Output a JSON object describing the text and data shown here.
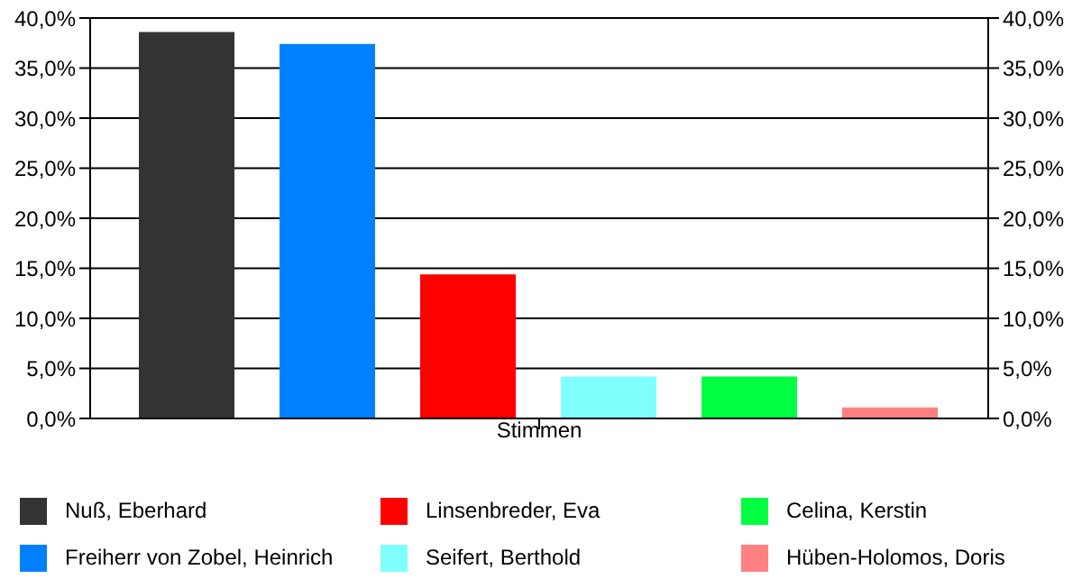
{
  "chart_data": {
    "type": "bar",
    "xlabel": "Stimmen",
    "categories": [
      null
    ],
    "series": [
      {
        "name": "Nuß, Eberhard",
        "color": "#333333",
        "values": [
          38.6
        ]
      },
      {
        "name": "Freiherr von Zobel, Heinrich",
        "color": "#0080ff",
        "values": [
          37.4
        ]
      },
      {
        "name": "Linsenbreder, Eva",
        "color": "#ff0000",
        "values": [
          14.4
        ]
      },
      {
        "name": "Seifert, Berthold",
        "color": "#80ffff",
        "values": [
          4.2
        ]
      },
      {
        "name": "Celina, Kerstin",
        "color": "#00ff40",
        "values": [
          4.2
        ]
      },
      {
        "name": "Hüben-Holomos, Doris",
        "color": "#ff8080",
        "values": [
          1.1
        ]
      }
    ],
    "ylim": [
      0,
      40
    ],
    "yticks": [
      {
        "value": 0,
        "label": "0,0%"
      },
      {
        "value": 5,
        "label": "5,0%"
      },
      {
        "value": 10,
        "label": "10,0%"
      },
      {
        "value": 15,
        "label": "15,0%"
      },
      {
        "value": 20,
        "label": "20,0%"
      },
      {
        "value": 25,
        "label": "25,0%"
      },
      {
        "value": 30,
        "label": "30,0%"
      },
      {
        "value": 35,
        "label": "35,0%"
      },
      {
        "value": 40,
        "label": "40,0%"
      }
    ],
    "y2lim": [
      0,
      40
    ],
    "y2ticks": [
      {
        "value": 0,
        "label": "0,0%"
      },
      {
        "value": 5,
        "label": "5,0%"
      },
      {
        "value": 10,
        "label": "10,0%"
      },
      {
        "value": 15,
        "label": "15,0%"
      },
      {
        "value": 20,
        "label": "20,0%"
      },
      {
        "value": 25,
        "label": "25,0%"
      },
      {
        "value": 30,
        "label": "30,0%"
      },
      {
        "value": 35,
        "label": "35,0%"
      },
      {
        "value": 40,
        "label": "40,0%"
      }
    ],
    "grid": "y",
    "legend": "bottom"
  }
}
